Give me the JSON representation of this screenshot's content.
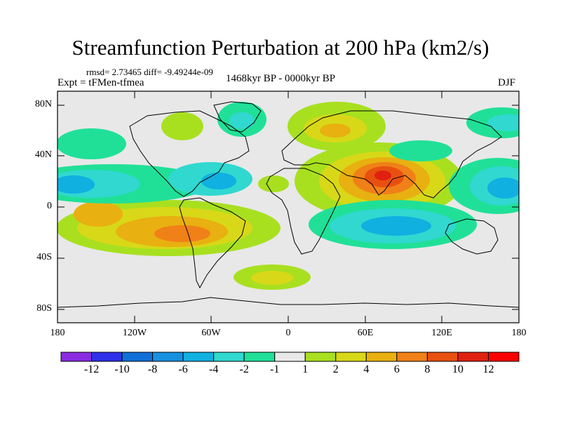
{
  "title": "Streamfunction Perturbation at 200 hPa (km2/s)",
  "stats": "rmsd= 2.73465 diff= -9.49244e-09",
  "experiment": "Expt = tFMen-tfmea",
  "period": "1468kyr BP - 0000kyr BP",
  "season": "DJF",
  "lat_ticks": [
    "80N",
    "40N",
    "0",
    "40S",
    "80S"
  ],
  "lon_ticks": [
    "180",
    "120W",
    "60W",
    "0",
    "60E",
    "120E",
    "180"
  ],
  "colorbar": {
    "labels": [
      "-12",
      "-10",
      "-8",
      "-6",
      "-4",
      "-2",
      "-1",
      "1",
      "2",
      "4",
      "6",
      "8",
      "10",
      "12"
    ],
    "colors": [
      "#8a2be2",
      "#3030e8",
      "#1070d8",
      "#1890e0",
      "#10b0e0",
      "#30d8d0",
      "#20e098",
      "#e8e8e8",
      "#a8e020",
      "#d8d818",
      "#e8b010",
      "#f08018",
      "#e85010",
      "#e02010",
      "#ff0000"
    ]
  },
  "colors": {
    "background": "#e8e8e8",
    "coast": "#000000"
  }
}
